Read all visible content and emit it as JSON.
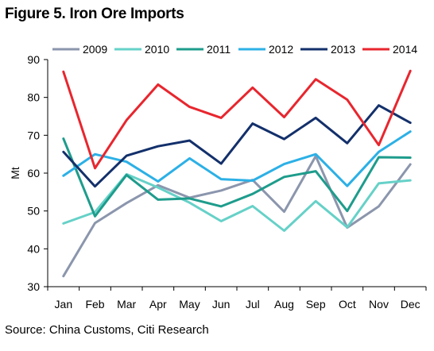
{
  "figure": {
    "title": "Figure 5. Iron Ore Imports",
    "source": "Source: China Customs, Citi Research"
  },
  "chart_data": {
    "type": "line",
    "title": "Figure 5. Iron Ore Imports",
    "xlabel": "",
    "ylabel": "Mt",
    "ylim": [
      30,
      90
    ],
    "yticks": [
      30,
      40,
      50,
      60,
      70,
      80,
      90
    ],
    "grid": false,
    "legend": "top",
    "categories": [
      "Jan",
      "Feb",
      "Mar",
      "Apr",
      "May",
      "Jun",
      "Jul",
      "Aug",
      "Sep",
      "Oct",
      "Nov",
      "Dec"
    ],
    "series": [
      {
        "name": "2009",
        "color": "#8B96AD",
        "values": [
          32.8,
          46.8,
          52.1,
          56.8,
          53.5,
          55.4,
          58.2,
          49.8,
          64.5,
          45.6,
          51.2,
          62.3
        ]
      },
      {
        "name": "2010",
        "color": "#66D1C8",
        "values": [
          46.7,
          49.7,
          59.7,
          56.2,
          52.2,
          47.3,
          51.3,
          44.8,
          52.6,
          45.7,
          57.3,
          58.1
        ]
      },
      {
        "name": "2011",
        "color": "#1E9C8C",
        "values": [
          69.1,
          48.6,
          59.5,
          53.0,
          53.3,
          51.2,
          54.5,
          59.0,
          60.5,
          50.0,
          64.2,
          64.1
        ]
      },
      {
        "name": "2012",
        "color": "#2CB0E6",
        "values": [
          59.3,
          65.0,
          63.0,
          57.8,
          63.9,
          58.4,
          58.0,
          62.4,
          65.0,
          56.6,
          65.6,
          71.0
        ]
      },
      {
        "name": "2013",
        "color": "#13306B",
        "values": [
          65.6,
          56.5,
          64.6,
          67.1,
          68.6,
          62.5,
          73.1,
          69.0,
          74.6,
          67.9,
          77.9,
          73.3
        ]
      },
      {
        "name": "2014",
        "color": "#E8262E",
        "values": [
          86.8,
          61.3,
          74.0,
          83.4,
          77.5,
          74.6,
          82.6,
          74.8,
          84.8,
          79.4,
          67.4,
          87.0
        ]
      }
    ]
  }
}
